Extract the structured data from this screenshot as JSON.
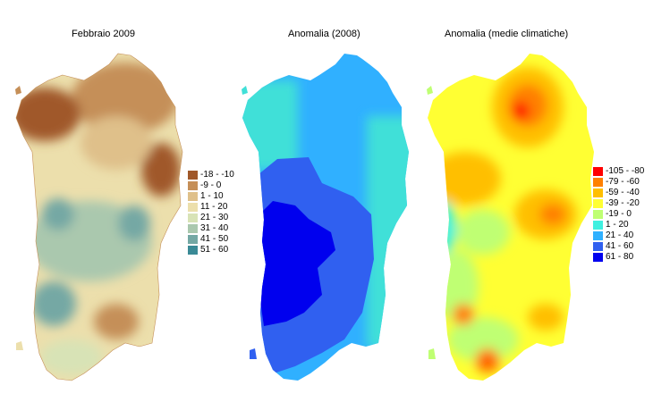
{
  "panels": [
    {
      "title": "Febbraio 2009",
      "legend": [
        {
          "label": "-18 - -10",
          "color": "#a0582a"
        },
        {
          "label": "-9 - 0",
          "color": "#c58f58"
        },
        {
          "label": "1 - 10",
          "color": "#dfc08a"
        },
        {
          "label": "11 - 20",
          "color": "#ecdfac"
        },
        {
          "label": "21 - 30",
          "color": "#d8e3b6"
        },
        {
          "label": "31 - 40",
          "color": "#aac8ae"
        },
        {
          "label": "41 - 50",
          "color": "#74a8a4"
        },
        {
          "label": "51 - 60",
          "color": "#3a8a96"
        }
      ]
    },
    {
      "title": "Anomalia (2008)",
      "legend": []
    },
    {
      "title": "Anomalia (medie climatiche)",
      "legend": [
        {
          "label": "-105 - -80",
          "color": "#ff0000"
        },
        {
          "label": "-79 - -60",
          "color": "#ff8000"
        },
        {
          "label": "-59 - -40",
          "color": "#ffbf00"
        },
        {
          "label": "-39 - -20",
          "color": "#ffff33"
        },
        {
          "label": "-19 - 0",
          "color": "#bfff73"
        },
        {
          "label": "1 - 20",
          "color": "#40f0e0"
        },
        {
          "label": "21 - 40",
          "color": "#30b0ff"
        },
        {
          "label": "41 - 60",
          "color": "#3060f0"
        },
        {
          "label": "61 - 80",
          "color": "#0000ee"
        }
      ]
    }
  ]
}
